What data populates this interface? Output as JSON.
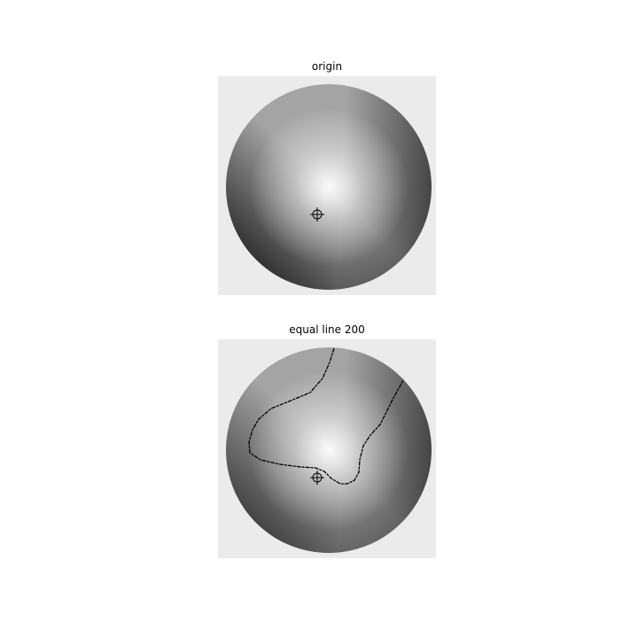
{
  "figure": {
    "panels": [
      {
        "title": "origin"
      },
      {
        "title": "equal line 200"
      }
    ],
    "colors": {
      "page_background": "#ffffff",
      "image_background": "#ebebeb",
      "contour": "#000000",
      "marker": "#000000"
    },
    "icons": {
      "marker": "crosshair-icon"
    }
  }
}
